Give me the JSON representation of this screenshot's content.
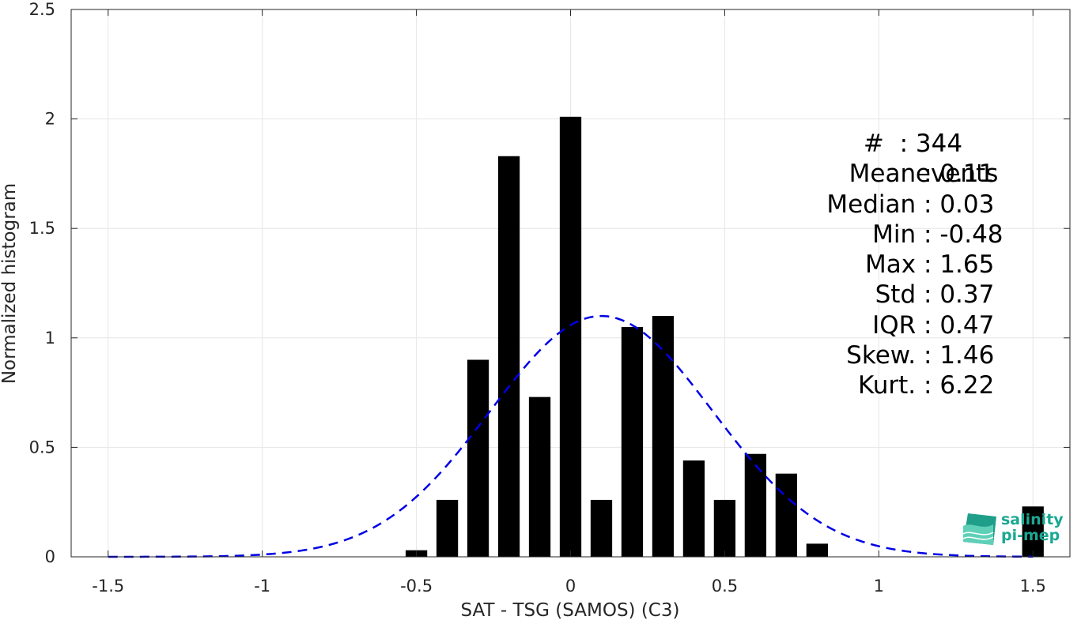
{
  "chart_data": {
    "type": "bar",
    "xlabel": "SAT - TSG (SAMOS) (C3)",
    "ylabel": "Normalized histogram",
    "xlim": [
      -1.62,
      1.62
    ],
    "ylim": [
      0,
      2.5
    ],
    "xticks": [
      "-1.5",
      "-1",
      "-0.5",
      "0",
      "0.5",
      "1",
      "1.5"
    ],
    "yticks": [
      "0",
      "0.5",
      "1",
      "1.5",
      "2",
      "2.5"
    ],
    "grid": true,
    "bar_width": 0.07,
    "bars": [
      {
        "x": -0.5,
        "value": 0.03
      },
      {
        "x": -0.4,
        "value": 0.26
      },
      {
        "x": -0.3,
        "value": 0.9
      },
      {
        "x": -0.2,
        "value": 1.83
      },
      {
        "x": -0.1,
        "value": 0.73
      },
      {
        "x": 0.0,
        "value": 2.01
      },
      {
        "x": 0.1,
        "value": 0.26
      },
      {
        "x": 0.2,
        "value": 1.05
      },
      {
        "x": 0.3,
        "value": 1.1
      },
      {
        "x": 0.4,
        "value": 0.44
      },
      {
        "x": 0.5,
        "value": 0.26
      },
      {
        "x": 0.6,
        "value": 0.47
      },
      {
        "x": 0.7,
        "value": 0.38
      },
      {
        "x": 0.8,
        "value": 0.06
      },
      {
        "x": 1.5,
        "value": 0.23
      }
    ],
    "fit_curve": {
      "style": "dashed",
      "color": "#0000e6",
      "mean": 0.1,
      "std": 0.36,
      "peak": 1.1,
      "x_range": [
        -1.5,
        1.5
      ]
    },
    "bar_color": "#000000"
  },
  "stats": [
    {
      "name": "#  ",
      "value": "344 events"
    },
    {
      "name": "Mean ",
      "value": "0.11"
    },
    {
      "name": "Median ",
      "value": "0.03"
    },
    {
      "name": "Min ",
      "value": "-0.48"
    },
    {
      "name": "Max ",
      "value": "1.65"
    },
    {
      "name": "Std ",
      "value": "0.37"
    },
    {
      "name": "IQR ",
      "value": "0.47"
    },
    {
      "name": "Skew. ",
      "value": "1.46"
    },
    {
      "name": "Kurt. ",
      "value": "6.22"
    }
  ],
  "logo": {
    "line1": "salinity",
    "line2": "pi-mep"
  }
}
